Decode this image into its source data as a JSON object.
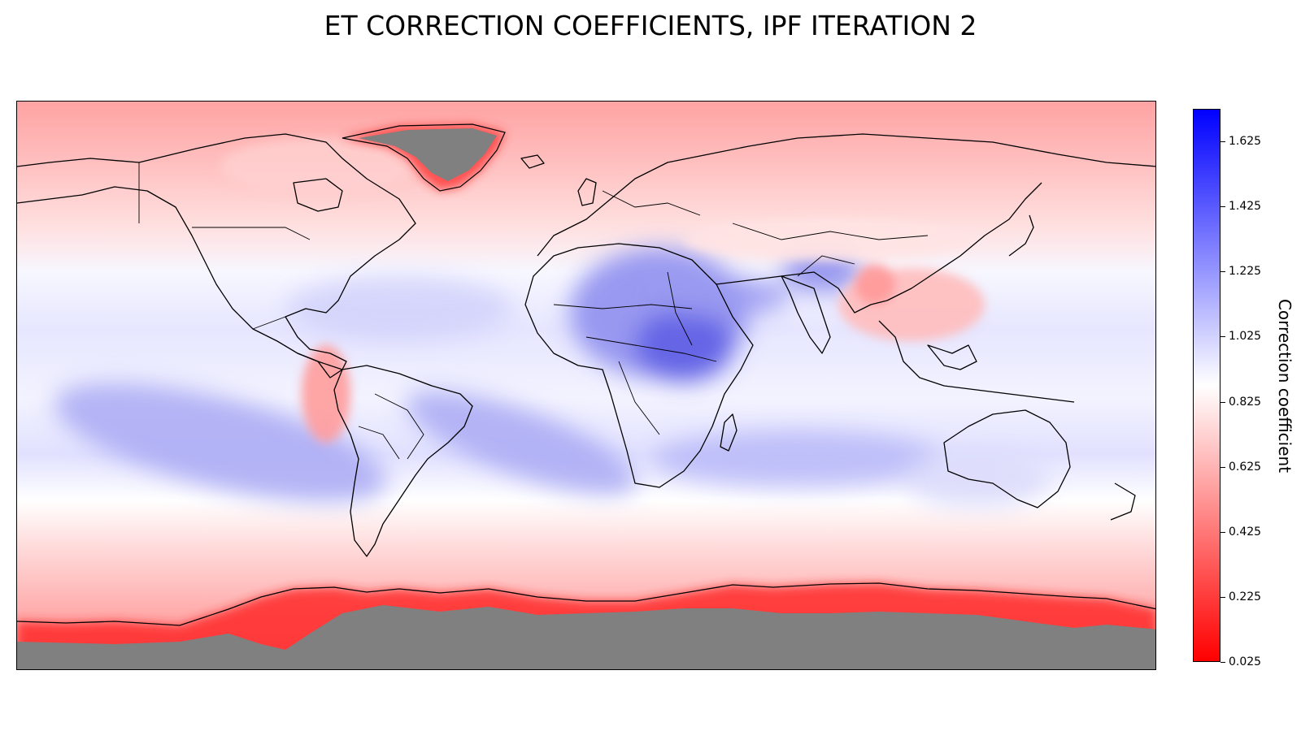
{
  "title": "ET CORRECTION COEFFICIENTS, IPF ITERATION 2",
  "map": {
    "type": "global choropleth / filled-contour map",
    "projection": "equirectangular (plate carrée)",
    "extent": {
      "lon": [
        -180,
        180
      ],
      "lat": [
        -90,
        90
      ]
    },
    "nodata_color": "#808080",
    "nodata_regions": [
      "Greenland",
      "Antarctica"
    ],
    "boundaries": [
      "coastlines",
      "country borders"
    ]
  },
  "colorbar": {
    "label": "Correction coefficient",
    "min": 0.025,
    "max": 1.725,
    "ticks": [
      "0.025",
      "0.225",
      "0.425",
      "0.625",
      "0.825",
      "1.025",
      "1.225",
      "1.425",
      "1.625"
    ],
    "colormap": "bwr_r",
    "low_color": "#ff0000",
    "mid_color": "#ffffff",
    "high_color": "#0000ff",
    "mid_value": 0.875
  }
}
